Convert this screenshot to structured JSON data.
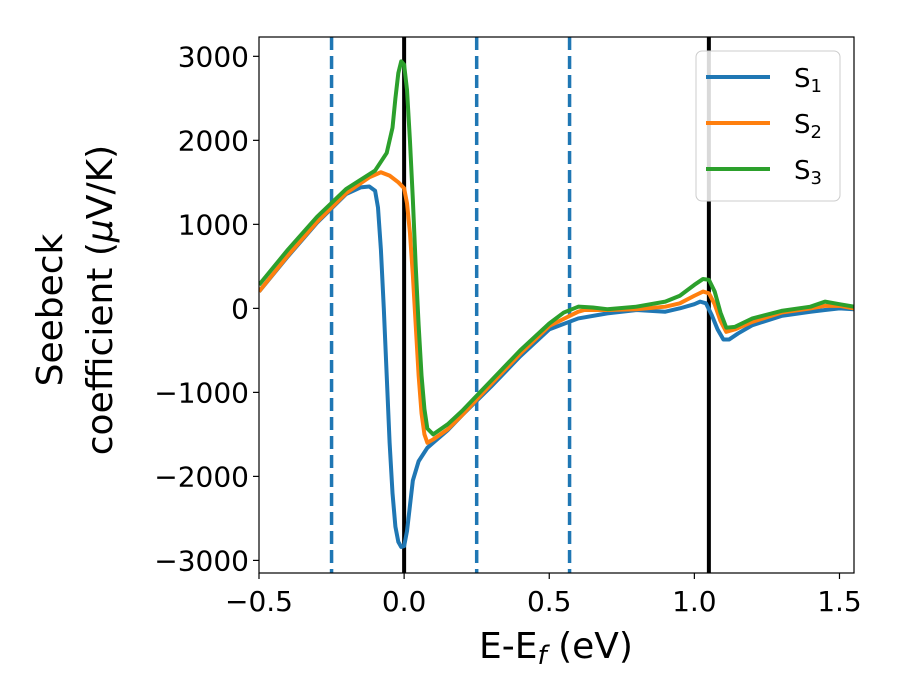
{
  "chart_data": {
    "type": "line",
    "xlabel": {
      "main": "E-E",
      "sub": "f",
      "unit": " (eV)"
    },
    "ylabel": {
      "line1": "Seebeck",
      "line2_prefix": "coefficient  (",
      "mu": "μ",
      "line2_suffix": "V/K)"
    },
    "xlim": [
      -0.5,
      1.55
    ],
    "ylim": [
      -3150,
      3230
    ],
    "xticks": [
      {
        "value": -0.5,
        "label": "−0.5"
      },
      {
        "value": 0.0,
        "label": "0.0"
      },
      {
        "value": 0.5,
        "label": "0.5"
      },
      {
        "value": 1.0,
        "label": "1.0"
      },
      {
        "value": 1.5,
        "label": "1.5"
      }
    ],
    "yticks": [
      {
        "value": 3000,
        "label": "3000"
      },
      {
        "value": 2000,
        "label": "2000"
      },
      {
        "value": 1000,
        "label": "1000"
      },
      {
        "value": 0,
        "label": "0"
      },
      {
        "value": -1000,
        "label": "−1000"
      },
      {
        "value": -2000,
        "label": "−2000"
      },
      {
        "value": -3000,
        "label": "−3000"
      }
    ],
    "legend_position": "top-right",
    "grid": false,
    "vlines": [
      {
        "x": -0.25,
        "style": "dashed",
        "color": "#1f77b4"
      },
      {
        "x": 0.0,
        "style": "solid",
        "color": "#000000"
      },
      {
        "x": 0.25,
        "style": "dashed",
        "color": "#1f77b4"
      },
      {
        "x": 0.57,
        "style": "dashed",
        "color": "#1f77b4"
      },
      {
        "x": 1.05,
        "style": "solid",
        "color": "#000000"
      }
    ],
    "series": [
      {
        "name": "S",
        "subscript": "1",
        "color": "#1f77b4",
        "points": [
          [
            -0.5,
            200
          ],
          [
            -0.4,
            620
          ],
          [
            -0.3,
            1020
          ],
          [
            -0.2,
            1360
          ],
          [
            -0.15,
            1440
          ],
          [
            -0.12,
            1450
          ],
          [
            -0.1,
            1400
          ],
          [
            -0.09,
            1200
          ],
          [
            -0.08,
            700
          ],
          [
            -0.07,
            0
          ],
          [
            -0.06,
            -800
          ],
          [
            -0.05,
            -1600
          ],
          [
            -0.04,
            -2200
          ],
          [
            -0.03,
            -2600
          ],
          [
            -0.02,
            -2780
          ],
          [
            -0.01,
            -2840
          ],
          [
            0.0,
            -2830
          ],
          [
            0.01,
            -2650
          ],
          [
            0.02,
            -2350
          ],
          [
            0.03,
            -2050
          ],
          [
            0.05,
            -1820
          ],
          [
            0.08,
            -1660
          ],
          [
            0.1,
            -1600
          ],
          [
            0.15,
            -1450
          ],
          [
            0.2,
            -1270
          ],
          [
            0.3,
            -930
          ],
          [
            0.4,
            -570
          ],
          [
            0.5,
            -250
          ],
          [
            0.6,
            -120
          ],
          [
            0.7,
            -60
          ],
          [
            0.8,
            -20
          ],
          [
            0.9,
            -40
          ],
          [
            0.95,
            0
          ],
          [
            1.0,
            50
          ],
          [
            1.02,
            80
          ],
          [
            1.04,
            60
          ],
          [
            1.06,
            -80
          ],
          [
            1.08,
            -250
          ],
          [
            1.1,
            -370
          ],
          [
            1.12,
            -370
          ],
          [
            1.15,
            -300
          ],
          [
            1.2,
            -200
          ],
          [
            1.3,
            -90
          ],
          [
            1.4,
            -40
          ],
          [
            1.45,
            -20
          ],
          [
            1.5,
            0
          ],
          [
            1.55,
            -10
          ]
        ]
      },
      {
        "name": "S",
        "subscript": "2",
        "color": "#ff7f0e",
        "points": [
          [
            -0.5,
            200
          ],
          [
            -0.4,
            630
          ],
          [
            -0.3,
            1030
          ],
          [
            -0.2,
            1370
          ],
          [
            -0.12,
            1560
          ],
          [
            -0.08,
            1620
          ],
          [
            -0.05,
            1580
          ],
          [
            -0.02,
            1500
          ],
          [
            0.0,
            1430
          ],
          [
            0.01,
            1250
          ],
          [
            0.02,
            900
          ],
          [
            0.03,
            400
          ],
          [
            0.04,
            -200
          ],
          [
            0.05,
            -800
          ],
          [
            0.06,
            -1250
          ],
          [
            0.07,
            -1500
          ],
          [
            0.08,
            -1600
          ],
          [
            0.1,
            -1560
          ],
          [
            0.15,
            -1440
          ],
          [
            0.2,
            -1270
          ],
          [
            0.3,
            -900
          ],
          [
            0.4,
            -540
          ],
          [
            0.5,
            -210
          ],
          [
            0.6,
            -40
          ],
          [
            0.62,
            -20
          ],
          [
            0.7,
            -20
          ],
          [
            0.8,
            -10
          ],
          [
            0.9,
            20
          ],
          [
            0.95,
            60
          ],
          [
            1.0,
            150
          ],
          [
            1.03,
            200
          ],
          [
            1.05,
            180
          ],
          [
            1.07,
            50
          ],
          [
            1.09,
            -150
          ],
          [
            1.11,
            -280
          ],
          [
            1.14,
            -250
          ],
          [
            1.2,
            -160
          ],
          [
            1.3,
            -50
          ],
          [
            1.4,
            0
          ],
          [
            1.45,
            30
          ],
          [
            1.5,
            30
          ],
          [
            1.55,
            0
          ]
        ]
      },
      {
        "name": "S",
        "subscript": "3",
        "color": "#2ca02c",
        "points": [
          [
            -0.5,
            280
          ],
          [
            -0.4,
            700
          ],
          [
            -0.3,
            1090
          ],
          [
            -0.2,
            1420
          ],
          [
            -0.1,
            1640
          ],
          [
            -0.06,
            1850
          ],
          [
            -0.04,
            2150
          ],
          [
            -0.03,
            2500
          ],
          [
            -0.02,
            2800
          ],
          [
            -0.01,
            2940
          ],
          [
            0.0,
            2900
          ],
          [
            0.01,
            2600
          ],
          [
            0.02,
            2000
          ],
          [
            0.03,
            1300
          ],
          [
            0.04,
            500
          ],
          [
            0.05,
            -200
          ],
          [
            0.06,
            -800
          ],
          [
            0.07,
            -1200
          ],
          [
            0.08,
            -1430
          ],
          [
            0.1,
            -1500
          ],
          [
            0.15,
            -1380
          ],
          [
            0.2,
            -1220
          ],
          [
            0.3,
            -860
          ],
          [
            0.4,
            -500
          ],
          [
            0.5,
            -180
          ],
          [
            0.55,
            -50
          ],
          [
            0.6,
            20
          ],
          [
            0.65,
            10
          ],
          [
            0.7,
            -10
          ],
          [
            0.8,
            20
          ],
          [
            0.9,
            80
          ],
          [
            0.95,
            150
          ],
          [
            1.0,
            280
          ],
          [
            1.03,
            350
          ],
          [
            1.05,
            340
          ],
          [
            1.07,
            200
          ],
          [
            1.09,
            -50
          ],
          [
            1.11,
            -230
          ],
          [
            1.14,
            -220
          ],
          [
            1.2,
            -120
          ],
          [
            1.3,
            -30
          ],
          [
            1.4,
            20
          ],
          [
            1.45,
            80
          ],
          [
            1.5,
            50
          ],
          [
            1.55,
            20
          ]
        ]
      }
    ]
  }
}
